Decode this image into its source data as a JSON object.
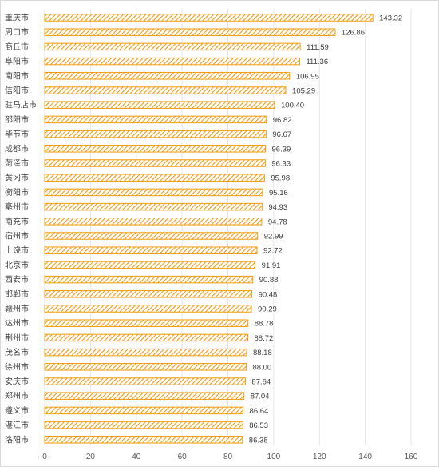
{
  "chart_data": {
    "type": "bar",
    "orientation": "horizontal",
    "categories": [
      "重庆市",
      "周口市",
      "商丘市",
      "阜阳市",
      "南阳市",
      "信阳市",
      "驻马店市",
      "邵阳市",
      "毕节市",
      "成都市",
      "菏泽市",
      "黄冈市",
      "衡阳市",
      "亳州市",
      "南充市",
      "宿州市",
      "上饶市",
      "北京市",
      "西安市",
      "邯郸市",
      "赣州市",
      "达州市",
      "荆州市",
      "茂名市",
      "徐州市",
      "安庆市",
      "郑州市",
      "遵义市",
      "湛江市",
      "洛阳市"
    ],
    "values": [
      143.32,
      126.86,
      111.59,
      111.36,
      106.95,
      105.29,
      100.4,
      96.82,
      96.67,
      96.39,
      96.33,
      95.98,
      95.16,
      94.93,
      94.78,
      92.99,
      92.72,
      91.91,
      90.88,
      90.48,
      90.29,
      88.78,
      88.72,
      88.18,
      88.0,
      87.64,
      87.04,
      86.64,
      86.53,
      86.38
    ],
    "value_labels": [
      "143.32",
      "126.86",
      "111.59",
      "111.36",
      "106.95",
      "105.29",
      "100.40",
      "96.82",
      "96.67",
      "96.39",
      "96.33",
      "95.98",
      "95.16",
      "94.93",
      "94.78",
      "92.99",
      "92.72",
      "91.91",
      "90.88",
      "90.48",
      "90.29",
      "88.78",
      "88.72",
      "88.18",
      "88.00",
      "87.64",
      "87.04",
      "86.64",
      "86.53",
      "86.38"
    ],
    "xlim": [
      0,
      160
    ],
    "x_ticks": [
      "0",
      "20",
      "40",
      "60",
      "80",
      "100",
      "120",
      "140",
      "160"
    ],
    "grid": true,
    "bar_color": "#f39c12",
    "bar_fill": "diagonal-hatch"
  }
}
